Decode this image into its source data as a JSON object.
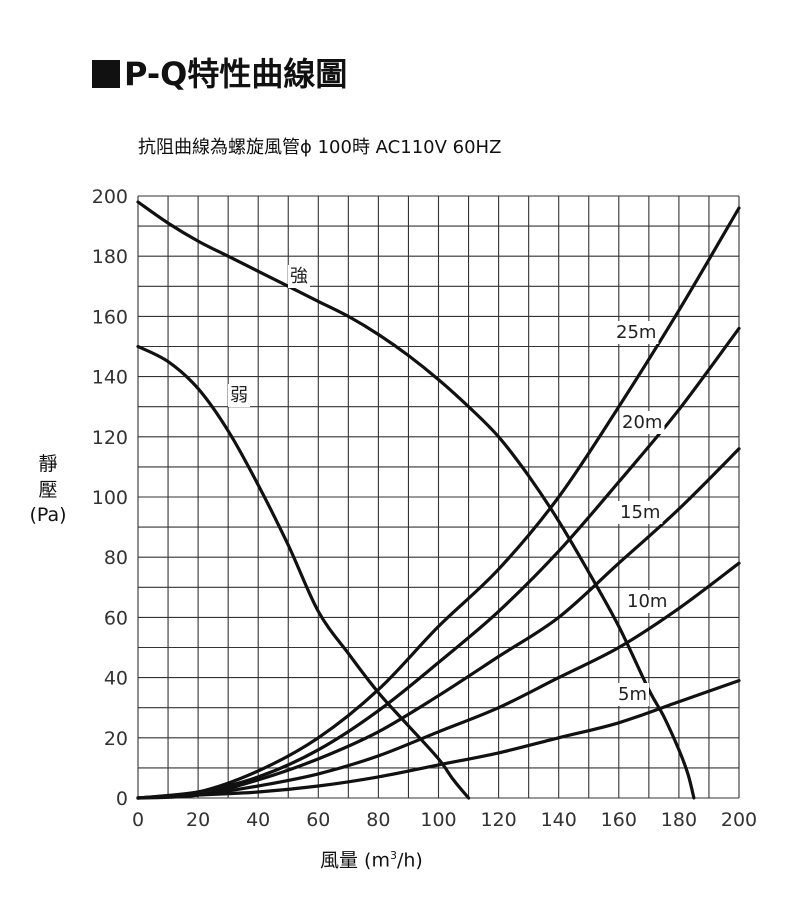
{
  "title": "P-Q特性曲線圖",
  "subtitle": "抗阻曲線為螺旋風管ϕ 100時 AC110V 60HZ",
  "ylabel": {
    "line1": "靜",
    "line2": "壓",
    "unit": "(Pa)"
  },
  "xlabel": {
    "text": "風量 (m",
    "sup": "3",
    "tail": "/h)"
  },
  "chart_data": {
    "type": "line",
    "title": "P-Q特性曲線圖",
    "subtitle": "抗阻曲線為螺旋風管ϕ 100時 AC110V 60HZ",
    "xlabel": "風量 (m³/h)",
    "ylabel": "靜壓 (Pa)",
    "xlim": [
      0,
      200
    ],
    "ylim": [
      0,
      200
    ],
    "xticks": [
      0,
      20,
      40,
      60,
      80,
      100,
      120,
      140,
      160,
      180,
      200
    ],
    "yticks": [
      0,
      20,
      40,
      60,
      80,
      100,
      120,
      140,
      160,
      180,
      200
    ],
    "grid": true,
    "grid_x_step": 10,
    "grid_y_step": 10,
    "series": [
      {
        "name": "強",
        "kind": "fan",
        "x": [
          0,
          10,
          20,
          30,
          40,
          50,
          60,
          70,
          80,
          90,
          100,
          110,
          120,
          130,
          140,
          150,
          160,
          170,
          175,
          180,
          183,
          185
        ],
        "y": [
          198,
          191,
          185,
          180,
          175,
          170,
          165,
          160,
          154,
          147,
          139,
          130,
          120,
          107,
          92,
          75,
          57,
          36,
          27,
          16,
          8,
          0
        ]
      },
      {
        "name": "弱",
        "kind": "fan",
        "x": [
          0,
          10,
          20,
          30,
          40,
          50,
          60,
          70,
          80,
          90,
          100,
          105,
          110
        ],
        "y": [
          150,
          145,
          136,
          122,
          104,
          84,
          62,
          48,
          35,
          24,
          13,
          6,
          0
        ]
      },
      {
        "name": "25m",
        "kind": "resistance",
        "x": [
          0,
          20,
          40,
          60,
          80,
          100,
          120,
          140,
          160,
          180,
          200
        ],
        "y": [
          0,
          2,
          9,
          20,
          36,
          57,
          76,
          100,
          130,
          162,
          196
        ]
      },
      {
        "name": "20m",
        "kind": "resistance",
        "x": [
          0,
          20,
          40,
          60,
          80,
          100,
          120,
          140,
          160,
          180,
          200
        ],
        "y": [
          0,
          2,
          7,
          16,
          29,
          45,
          62,
          82,
          105,
          129,
          156
        ]
      },
      {
        "name": "15m",
        "kind": "resistance",
        "x": [
          0,
          20,
          40,
          60,
          80,
          100,
          120,
          140,
          160,
          180,
          200
        ],
        "y": [
          0,
          1,
          6,
          13,
          22,
          34,
          47,
          60,
          78,
          96,
          116
        ]
      },
      {
        "name": "10m",
        "kind": "resistance",
        "x": [
          0,
          20,
          40,
          60,
          80,
          100,
          120,
          140,
          160,
          180,
          200
        ],
        "y": [
          0,
          1,
          4,
          8,
          14,
          22,
          30,
          40,
          50,
          63,
          78
        ]
      },
      {
        "name": "5m",
        "kind": "resistance",
        "x": [
          0,
          20,
          40,
          60,
          80,
          100,
          120,
          140,
          160,
          180,
          200
        ],
        "y": [
          0,
          1,
          2,
          4,
          7,
          11,
          15,
          20,
          25,
          32,
          39
        ]
      }
    ]
  }
}
